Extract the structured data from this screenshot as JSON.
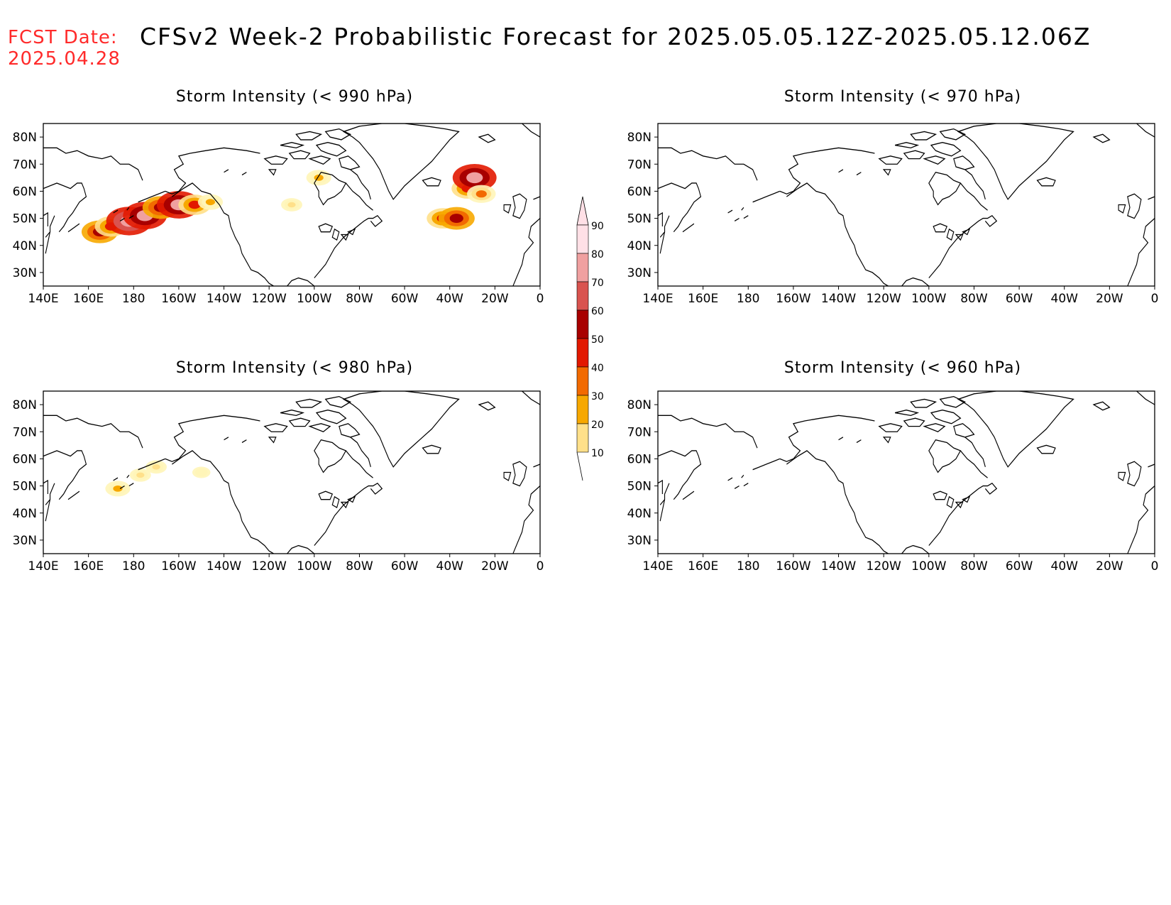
{
  "fcst_label": "FCST Date:",
  "fcst_date": "2025.04.28",
  "main_title": "CFSv2 Week-2 Probabilistic Forecast for 2025.05.05.12Z-2025.05.12.06Z",
  "panels": [
    {
      "title": "Storm Intensity (< 990 hPa)"
    },
    {
      "title": "Storm Intensity (< 970 hPa)"
    },
    {
      "title": "Storm Intensity (< 980 hPa)"
    },
    {
      "title": "Storm Intensity (< 960 hPa)"
    }
  ],
  "axes": {
    "lon_labels": [
      "140E",
      "160E",
      "180",
      "160W",
      "140W",
      "120W",
      "100W",
      "80W",
      "60W",
      "40W",
      "20W",
      "0"
    ],
    "lat_labels": [
      "80N",
      "70N",
      "60N",
      "50N",
      "40N",
      "30N"
    ]
  },
  "colorbar": {
    "levels": [
      "10",
      "20",
      "30",
      "40",
      "50",
      "60",
      "70",
      "80",
      "90"
    ],
    "colors": [
      "#fff5b8",
      "#ffe08a",
      "#f7a800",
      "#f26a00",
      "#e21800",
      "#a80000",
      "#d9534f",
      "#f0a0a0",
      "#ffe0e6"
    ]
  },
  "chart_data": {
    "type": "heatmap",
    "lon_range": [
      140,
      360
    ],
    "lat_range": [
      25,
      85
    ],
    "panels": [
      {
        "title": "Storm Intensity (< 990 hPa)",
        "probability_areas": [
          {
            "lon": 165,
            "lat": 45,
            "prob": 60
          },
          {
            "lon": 170,
            "lat": 47,
            "prob": 50
          },
          {
            "lon": 178,
            "lat": 49,
            "prob": 85
          },
          {
            "lon": 185,
            "lat": 51,
            "prob": 80
          },
          {
            "lon": 192,
            "lat": 54,
            "prob": 60
          },
          {
            "lon": 200,
            "lat": 55,
            "prob": 80
          },
          {
            "lon": 207,
            "lat": 55,
            "prob": 50
          },
          {
            "lon": 214,
            "lat": 56,
            "prob": 30
          },
          {
            "lon": 250,
            "lat": 55,
            "prob": 20
          },
          {
            "lon": 262,
            "lat": 65,
            "prob": 30
          },
          {
            "lon": 317,
            "lat": 50,
            "prob": 50
          },
          {
            "lon": 323,
            "lat": 50,
            "prob": 60
          },
          {
            "lon": 328,
            "lat": 61,
            "prob": 50
          },
          {
            "lon": 331,
            "lat": 65,
            "prob": 80
          },
          {
            "lon": 334,
            "lat": 59,
            "prob": 40
          }
        ]
      },
      {
        "title": "Storm Intensity (< 970 hPa)",
        "probability_areas": []
      },
      {
        "title": "Storm Intensity (< 980 hPa)",
        "probability_areas": [
          {
            "lon": 173,
            "lat": 49,
            "prob": 30
          },
          {
            "lon": 183,
            "lat": 54,
            "prob": 20
          },
          {
            "lon": 190,
            "lat": 57,
            "prob": 20
          },
          {
            "lon": 210,
            "lat": 55,
            "prob": 10
          }
        ]
      },
      {
        "title": "Storm Intensity (< 960 hPa)",
        "probability_areas": []
      }
    ]
  }
}
